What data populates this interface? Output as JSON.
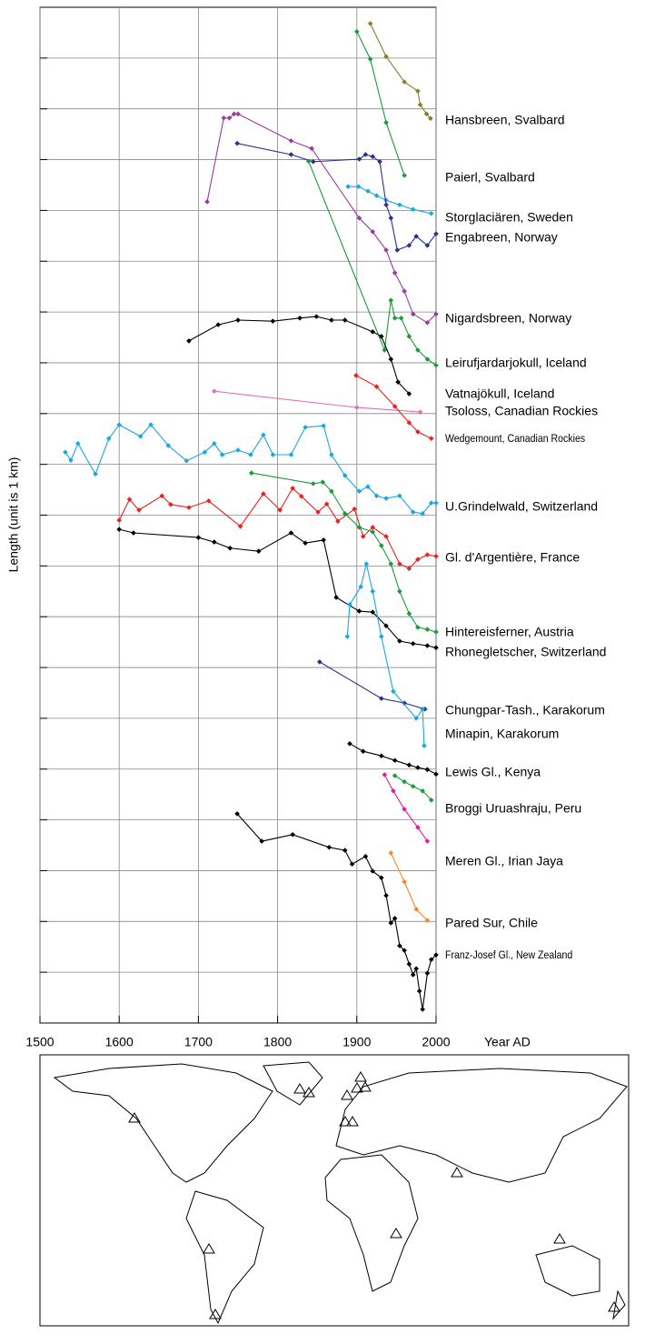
{
  "chart_data": {
    "type": "line",
    "xlabel": "Year AD",
    "ylabel": "Length (unit is 1 km)",
    "xlim": [
      1500,
      2000
    ],
    "xticks": [
      1500,
      1600,
      1700,
      1800,
      1900,
      2000
    ],
    "ylim": [
      0,
      20
    ],
    "yticks": [
      1,
      2,
      3,
      4,
      5,
      6,
      7,
      8,
      9,
      10,
      11,
      12,
      13,
      14,
      15,
      16,
      17,
      18,
      19
    ],
    "grid": true,
    "series": [
      {
        "name": "Hansbreen, Svalbard",
        "color": "#8b7d2e",
        "x": [
          1917,
          1937,
          1960,
          1977,
          1980,
          1988,
          1993
        ],
        "values": [
          19.68,
          19.03,
          18.53,
          18.35,
          18.08,
          17.9,
          17.81
        ]
      },
      {
        "name": "Paierl, Svalbard",
        "color": "#1a9a3a",
        "x": [
          1900,
          1917,
          1937,
          1960
        ],
        "values": [
          19.52,
          18.98,
          17.73,
          16.69
        ]
      },
      {
        "name": "Storglaciären, Sweden",
        "color": "#1aa7e0",
        "x": [
          1889,
          1902,
          1914,
          1925,
          1937,
          1954,
          1971,
          1994
        ],
        "values": [
          16.47,
          16.47,
          16.38,
          16.29,
          16.2,
          16.11,
          16.02,
          15.94
        ]
      },
      {
        "name": "Engabreen, Norway",
        "color": "#2b2f8f",
        "x": [
          1749,
          1817,
          1845,
          1903,
          1911,
          1920,
          1929,
          1937,
          1943,
          1951,
          1966,
          1975,
          1989,
          2000
        ],
        "values": [
          17.32,
          17.1,
          16.96,
          17.01,
          17.1,
          17.06,
          16.96,
          16.11,
          15.85,
          15.22,
          15.31,
          15.49,
          15.31,
          15.54
        ]
      },
      {
        "name": "Nigardsbreen, Norway",
        "color": "#9a3a9e",
        "x": [
          1711,
          1732,
          1739,
          1745,
          1750,
          1817,
          1843,
          1903,
          1920,
          1937,
          1948,
          1960,
          1971,
          1989,
          2000
        ],
        "values": [
          16.17,
          17.82,
          17.82,
          17.9,
          17.9,
          17.37,
          17.22,
          15.85,
          15.58,
          15.22,
          14.77,
          14.41,
          13.96,
          13.79,
          13.96
        ]
      },
      {
        "name": "Leirufjardarjokull, Iceland",
        "color": "#1a9a3a",
        "x": [
          1839,
          1935,
          1943,
          1948,
          1956,
          1966,
          1977,
          1989,
          2000
        ],
        "values": [
          16.97,
          13.25,
          14.23,
          13.88,
          13.88,
          13.52,
          13.25,
          13.07,
          12.95
        ]
      },
      {
        "name": "Vatnajökull, Iceland",
        "color": "#000000",
        "x": [
          1688,
          1725,
          1750,
          1794,
          1828,
          1849,
          1868,
          1885,
          1920,
          1931,
          1943,
          1952,
          1966
        ],
        "values": [
          13.43,
          13.75,
          13.84,
          13.82,
          13.88,
          13.91,
          13.84,
          13.84,
          13.61,
          13.52,
          13.07,
          12.62,
          12.39
        ]
      },
      {
        "name": "Tsoloss, Canadian Rockies",
        "color": "#e070b0",
        "x": [
          1720,
          1900,
          1980
        ],
        "values": [
          12.44,
          12.12,
          12.03
        ]
      },
      {
        "name": "Wedgemount, Canadian Rockies",
        "color": "#e8231e",
        "x": [
          1899,
          1925,
          1948,
          1966,
          1977,
          1994
        ],
        "values": [
          12.75,
          12.53,
          12.14,
          11.82,
          11.64,
          11.51
        ]
      },
      {
        "name": "U.Grindelwald, Switzerland",
        "color": "#1aa7e0",
        "x": [
          1532,
          1539,
          1548,
          1570,
          1587,
          1600,
          1627,
          1640,
          1662,
          1685,
          1708,
          1720,
          1730,
          1750,
          1766,
          1782,
          1794,
          1817,
          1835,
          1858,
          1868,
          1885,
          1903,
          1914,
          1925,
          1937,
          1954,
          1971,
          1983,
          1994,
          2000
        ],
        "values": [
          11.24,
          11.08,
          11.41,
          10.81,
          11.51,
          11.78,
          11.55,
          11.78,
          11.37,
          11.07,
          11.24,
          11.41,
          11.19,
          11.28,
          11.19,
          11.58,
          11.19,
          11.19,
          11.73,
          11.76,
          11.19,
          10.78,
          10.47,
          10.56,
          10.38,
          10.33,
          10.38,
          10.06,
          10.03,
          10.24,
          10.24
        ]
      },
      {
        "name": "Gl. d'Argentière, France",
        "color": "#e8231e",
        "x": [
          1600,
          1613,
          1625,
          1654,
          1665,
          1688,
          1713,
          1753,
          1782,
          1803,
          1819,
          1830,
          1851,
          1862,
          1876,
          1897,
          1908,
          1920,
          1937,
          1954,
          1966,
          1977,
          1989,
          2000
        ],
        "values": [
          9.9,
          10.31,
          10.1,
          10.38,
          10.21,
          10.15,
          10.28,
          9.78,
          10.42,
          10.1,
          10.53,
          10.37,
          10.06,
          10.22,
          9.88,
          10.12,
          9.58,
          9.76,
          9.58,
          9.04,
          8.95,
          9.13,
          9.22,
          9.19
        ]
      },
      {
        "name": "Hintereisferner, Austria",
        "color": "#1a9a3a",
        "x": [
          1767,
          1845,
          1857,
          1868,
          1885,
          1903,
          1920,
          1931,
          1943,
          1954,
          1966,
          1977,
          1989,
          2000
        ],
        "values": [
          10.83,
          10.62,
          10.65,
          10.47,
          10.03,
          9.76,
          9.67,
          9.4,
          9.04,
          8.5,
          8.06,
          7.79,
          7.75,
          7.7
        ]
      },
      {
        "name": "Rhonegletscher, Switzerland",
        "color": "#000000",
        "x": [
          1600,
          1618,
          1700,
          1720,
          1740,
          1776,
          1817,
          1835,
          1858,
          1874,
          1903,
          1920,
          1937,
          1954,
          1971,
          1989,
          2000
        ],
        "values": [
          9.72,
          9.65,
          9.56,
          9.47,
          9.35,
          9.29,
          9.65,
          9.45,
          9.51,
          8.38,
          8.11,
          8.09,
          7.82,
          7.52,
          7.47,
          7.43,
          7.39
        ]
      },
      {
        "name": "Chungpar-Tash., Karakorum",
        "color": "#2b2f8f",
        "x": [
          1853,
          1931,
          1960,
          1986
        ],
        "values": [
          7.11,
          6.39,
          6.3,
          6.18
        ]
      },
      {
        "name": "Minapin, Karakorum",
        "color": "#1aa7e0",
        "x": [
          1888,
          1891,
          1905,
          1912,
          1920,
          1931,
          1946,
          1975,
          1983,
          1985
        ],
        "values": [
          7.61,
          8.24,
          8.59,
          9.04,
          8.5,
          7.61,
          6.53,
          6.0,
          6.18,
          5.46
        ]
      },
      {
        "name": "Lewis Gl., Kenya",
        "color": "#000000",
        "x": [
          1891,
          1908,
          1931,
          1948,
          1966,
          1977,
          1989,
          2000
        ],
        "values": [
          5.5,
          5.35,
          5.26,
          5.17,
          5.08,
          5.03,
          4.99,
          4.9
        ]
      },
      {
        "name": "Broggi Uruashraju, Peru",
        "color": "#1a9a3a",
        "x": [
          1948,
          1960,
          1971,
          1983,
          1994
        ],
        "values": [
          4.87,
          4.75,
          4.66,
          4.57,
          4.39
        ]
      },
      {
        "name": "Meren Gl.,  Irian Jaya",
        "color": "#e0209a",
        "x": [
          1935,
          1946,
          1960,
          1977,
          1989
        ],
        "values": [
          4.89,
          4.57,
          4.21,
          3.85,
          3.58
        ]
      },
      {
        "name": "Pared Sur, Chile",
        "color": "#f08a2a",
        "x": [
          1943,
          1960,
          1975,
          1989
        ],
        "values": [
          3.35,
          2.78,
          2.24,
          2.02
        ]
      },
      {
        "name": "Franz-Josef Gl., New Zealand",
        "color": "#000000",
        "x": [
          1749,
          1780,
          1819,
          1865,
          1885,
          1894,
          1911,
          1920,
          1931,
          1937,
          1943,
          1948,
          1954,
          1960,
          1966,
          1971,
          1975,
          1979,
          1983,
          1989,
          1994,
          2000
        ],
        "values": [
          4.12,
          3.58,
          3.71,
          3.46,
          3.4,
          3.13,
          3.28,
          2.99,
          2.86,
          2.51,
          1.97,
          2.06,
          1.52,
          1.43,
          1.16,
          0.95,
          1.07,
          0.63,
          0.27,
          0.98,
          1.25,
          1.34
        ]
      }
    ]
  }
}
